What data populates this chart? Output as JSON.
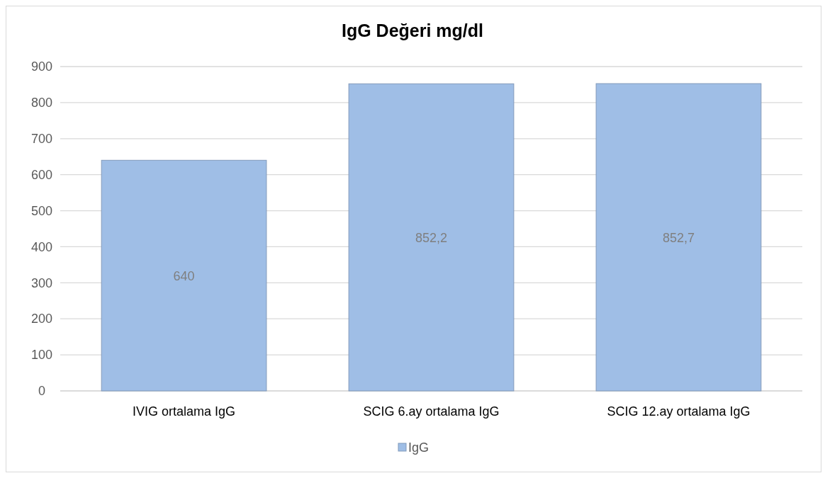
{
  "chart_data": {
    "type": "bar",
    "title": "IgG Değeri mg/dl",
    "categories": [
      "IVIG ortalama IgG",
      "SCIG 6.ay ortalama IgG",
      "SCIG 12.ay ortalama IgG"
    ],
    "series": [
      {
        "name": "IgG",
        "color": "#9fbee6",
        "values": [
          640,
          852.2,
          852.7
        ],
        "value_labels": [
          "640",
          "852,2",
          "852,7"
        ]
      }
    ],
    "ylim": [
      0,
      900
    ],
    "yticks": [
      0,
      100,
      200,
      300,
      400,
      500,
      600,
      700,
      800,
      900
    ],
    "grid": "y",
    "legend": "bottom"
  }
}
